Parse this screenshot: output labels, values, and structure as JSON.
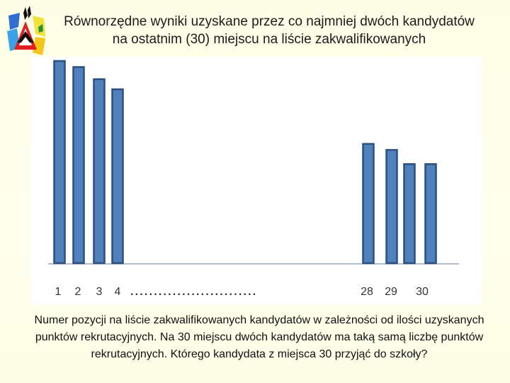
{
  "slide": {
    "title_line1": "Równorzędne wyniki uzyskane przez co najmniej dwóch kandydatów",
    "title_line2": "na ostatnim (30) miejscu na liście zakwalifikowanych",
    "caption": "Numer pozycji na liście zakwalifikowanych kandydatów w zależności od ilości uzyskanych punktów rekrutacyjnych. Na 30 miejscu dwóch kandydatów ma taką samą liczbę punktów rekrutacyjnych. Którego kandydata z miejsca 30 przyjąć do szkoły?"
  },
  "colors": {
    "bar_fill": "#4f81bd",
    "bar_stroke": "#2c4f7c",
    "baseline": "#9aa8bd",
    "tick_text": "#333333"
  },
  "logo": {
    "icon": "school-logo-icon"
  },
  "chart_data": {
    "type": "bar",
    "categories": [
      "1",
      "2",
      "3",
      "4",
      "28",
      "29",
      "30",
      "30"
    ],
    "tick_labels": [
      "1",
      "2",
      "3",
      "4",
      "28",
      "29",
      "30"
    ],
    "ellipsis": "...........................",
    "values": [
      100,
      97,
      91,
      86,
      59,
      56,
      49,
      49
    ],
    "ylim": [
      0,
      100
    ],
    "grid": false,
    "legend": "none",
    "title": "",
    "xlabel": "",
    "ylabel": ""
  }
}
